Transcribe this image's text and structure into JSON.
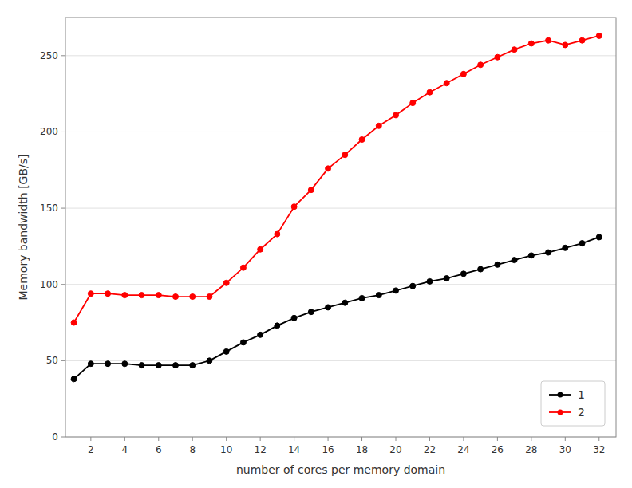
{
  "chart_data": {
    "type": "line",
    "x_label": "number of cores per memory domain",
    "y_label": "Memory bandwidth [GB/s]",
    "x": [
      1,
      2,
      3,
      4,
      5,
      6,
      7,
      8,
      9,
      10,
      11,
      12,
      13,
      14,
      15,
      16,
      17,
      18,
      19,
      20,
      21,
      22,
      23,
      24,
      25,
      26,
      27,
      28,
      29,
      30,
      31,
      32
    ],
    "series": [
      {
        "name": "1",
        "color": "#000000",
        "marker": "circle",
        "values": [
          38,
          48,
          48,
          48,
          47,
          47,
          47,
          47,
          50,
          56,
          62,
          67,
          73,
          78,
          82,
          85,
          88,
          91,
          93,
          96,
          99,
          102,
          104,
          107,
          110,
          113,
          116,
          119,
          121,
          124,
          127,
          131
        ]
      },
      {
        "name": "2",
        "color": "#ff0000",
        "marker": "circle",
        "values": [
          75,
          94,
          94,
          93,
          93,
          93,
          92,
          92,
          92,
          101,
          111,
          123,
          133,
          151,
          162,
          176,
          185,
          195,
          204,
          211,
          219,
          226,
          232,
          238,
          244,
          249,
          254,
          258,
          260,
          257,
          260,
          263
        ]
      }
    ],
    "xlim": [
      0.5,
      33
    ],
    "ylim": [
      0,
      275
    ],
    "xticks": [
      2,
      4,
      6,
      8,
      10,
      12,
      14,
      16,
      18,
      20,
      22,
      24,
      26,
      28,
      30,
      32
    ],
    "yticks": [
      0,
      50,
      100,
      150,
      200,
      250
    ],
    "grid": "y",
    "legend": "lower right"
  }
}
